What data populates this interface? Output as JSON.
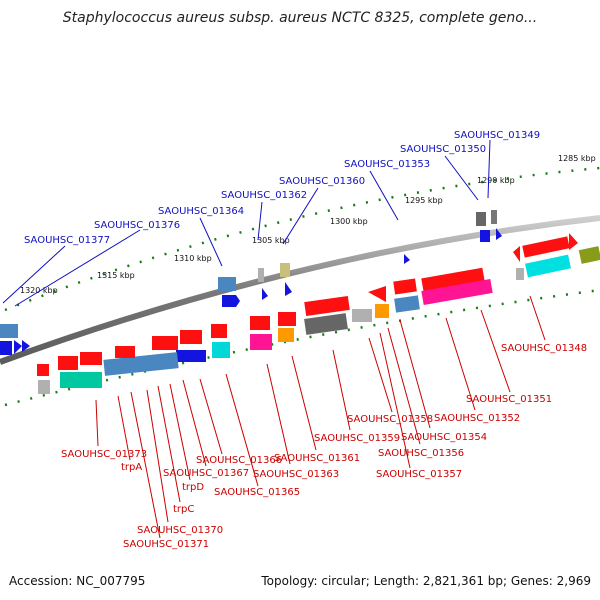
{
  "title": "Staphylococcus aureus subsp. aureus NCTC 8325, complete geno...",
  "footer": {
    "accession": "Accession: NC_007795",
    "topology": "Topology: circular; Length: 2,821,361 bp; Genes: 2,969"
  },
  "colors": {
    "backbone": "#888888",
    "tick": "#1a7a1a",
    "label_blue": "#1010c0",
    "label_red": "#cc0000",
    "gene_red": "#ff1010",
    "gene_blue": "#1414e0",
    "gene_steel": "#4a86c0",
    "gene_cyan": "#00d8d8",
    "gene_teal": "#00c8a0",
    "gene_pink": "#ff1493",
    "gene_orange": "#ff9900",
    "gene_olive": "#8a9a1a",
    "gene_gray": "#777777",
    "gene_silver": "#b0b0b0",
    "gene_khaki": "#c8c07a"
  },
  "kbp_labels": [
    "1285 kbp",
    "1290 kbp",
    "1295 kbp",
    "1300 kbp",
    "1305 kbp",
    "1310 kbp",
    "1315 kbp",
    "1320 kbp"
  ],
  "top_labels": [
    "SAOUHSC_01349",
    "SAOUHSC_01350",
    "SAOUHSC_01353",
    "SAOUHSC_01360",
    "SAOUHSC_01362",
    "SAOUHSC_01364",
    "SAOUHSC_01376",
    "SAOUHSC_01377"
  ],
  "bottom_labels": [
    "SAOUHSC_01348",
    "SAOUHSC_01351",
    "SAOUHSC_01352",
    "SAOUHSC_01354",
    "SAOUHSC_01356",
    "SAOUHSC_01357",
    "SAOUHSC_01358",
    "SAOUHSC_01359",
    "SAOUHSC_01361",
    "SAOUHSC_01363",
    "SAOUHSC_01365",
    "SAOUHSC_01366",
    "SAOUHSC_01367",
    "trpD",
    "trpC",
    "SAOUHSC_01370",
    "SAOUHSC_01371",
    "trpA",
    "SAOUHSC_01373"
  ]
}
